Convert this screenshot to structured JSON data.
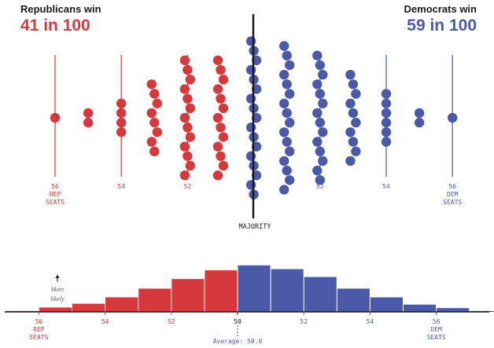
{
  "headline": {
    "rep": {
      "label": "Republicans win",
      "odds": "41 in 100",
      "color": "#d6393b"
    },
    "dem": {
      "label": "Democrats win",
      "odds": "59 in 100",
      "color": "#4a5aa8"
    }
  },
  "majority_label": "MAJORITY",
  "more_likely": [
    "More",
    "likely"
  ],
  "average_label": "Average: 50.0",
  "chart_data": [
    {
      "type": "scatter",
      "description": "dot plot of simulated seat outcomes",
      "x_ticks": [
        {
          "seats": 56,
          "lines": [
            "56",
            "REP",
            "SEATS"
          ],
          "color": "#d6393b"
        },
        {
          "seats": 54,
          "lines": [
            "54"
          ],
          "color": "#d6393b"
        },
        {
          "seats": 52,
          "lines": [
            "52"
          ],
          "color": "#d6393b"
        },
        {
          "seats": 52,
          "lines": [
            "52"
          ],
          "color": "#4a5aa8"
        },
        {
          "seats": 54,
          "lines": [
            "54"
          ],
          "color": "#4a5aa8"
        },
        {
          "seats": 56,
          "lines": [
            "56",
            "DEM",
            "SEATS"
          ],
          "color": "#4a5aa8"
        }
      ],
      "columns": [
        {
          "dem_seats": 44,
          "party": "rep",
          "dots": 1
        },
        {
          "dem_seats": 45,
          "party": "rep",
          "dots": 2
        },
        {
          "dem_seats": 46,
          "party": "rep",
          "dots": 4
        },
        {
          "dem_seats": 47,
          "party": "rep",
          "dots": 8
        },
        {
          "dem_seats": 48,
          "party": "rep",
          "dots": 13
        },
        {
          "dem_seats": 49,
          "party": "rep",
          "dots": 13
        },
        {
          "dem_seats": 50,
          "party": "dem",
          "dots": 17
        },
        {
          "dem_seats": 51,
          "party": "dem",
          "dots": 16
        },
        {
          "dem_seats": 52,
          "party": "dem",
          "dots": 14
        },
        {
          "dem_seats": 53,
          "party": "dem",
          "dots": 10
        },
        {
          "dem_seats": 54,
          "party": "dem",
          "dots": 6
        },
        {
          "dem_seats": 55,
          "party": "dem",
          "dots": 2
        },
        {
          "dem_seats": 56,
          "party": "dem",
          "dots": 1
        }
      ]
    },
    {
      "type": "bar",
      "description": "histogram of seat outcomes",
      "x_ticks": [
        {
          "seats": 56,
          "lines": [
            "56",
            "REP",
            "SEATS"
          ],
          "color": "#d6393b"
        },
        {
          "seats": 54,
          "lines": [
            "54"
          ],
          "color": "#d6393b"
        },
        {
          "seats": 52,
          "lines": [
            "52"
          ],
          "color": "#d6393b"
        },
        {
          "seats": 50,
          "lines": [
            "50"
          ],
          "color": "#1a1a1a"
        },
        {
          "seats": 52,
          "lines": [
            "52"
          ],
          "color": "#4a5aa8"
        },
        {
          "seats": 54,
          "lines": [
            "54"
          ],
          "color": "#4a5aa8"
        },
        {
          "seats": 56,
          "lines": [
            "56",
            "DEM",
            "SEATS"
          ],
          "color": "#4a5aa8"
        }
      ],
      "categories": [
        43,
        44,
        45,
        46,
        47,
        48,
        49,
        50,
        51,
        52,
        53,
        54,
        55,
        56,
        57
      ],
      "values": [
        0.3,
        1.5,
        2.8,
        5.0,
        8.0,
        11.3,
        14.3,
        16.0,
        14.7,
        12.0,
        8.0,
        5.0,
        2.5,
        1.3,
        0.3
      ],
      "party": [
        "rep",
        "rep",
        "rep",
        "rep",
        "rep",
        "rep",
        "rep",
        "dem",
        "dem",
        "dem",
        "dem",
        "dem",
        "dem",
        "dem",
        "dem"
      ],
      "average": 50.0
    }
  ]
}
